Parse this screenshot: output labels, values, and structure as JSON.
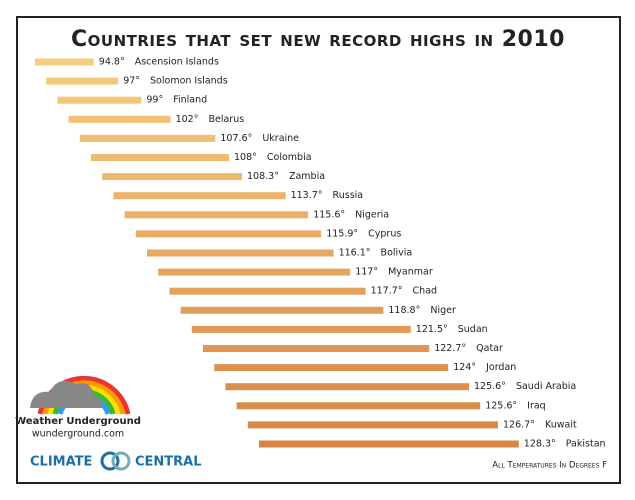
{
  "chart_data": {
    "type": "bar",
    "orientation": "horizontal",
    "title": "Countries that set new record highs in 2010",
    "categories": [
      "Ascension Islands",
      "Solomon Islands",
      "Finland",
      "Belarus",
      "Ukraine",
      "Colombia",
      "Zambia",
      "Russia",
      "Nigeria",
      "Cyprus",
      "Bolivia",
      "Myanmar",
      "Chad",
      "Niger",
      "Sudan",
      "Qatar",
      "Jordan",
      "Saudi Arabia",
      "Iraq",
      "Kuwait",
      "Pakistan"
    ],
    "values": [
      94.8,
      97,
      99,
      102,
      107.6,
      108,
      108.3,
      113.7,
      115.6,
      115.9,
      116.1,
      117,
      117.7,
      118.8,
      121.5,
      122.7,
      124,
      125.6,
      125.6,
      126.7,
      128.3
    ],
    "value_labels": [
      "94.8°",
      "97°",
      "99°",
      "102°",
      "107.6°",
      "108°",
      "108.3°",
      "113.7°",
      "115.6°",
      "115.9°",
      "116.1°",
      "117°",
      "117.7°",
      "118.8°",
      "121.5°",
      "122.7°",
      "124°",
      "125.6°",
      "125.6°",
      "126.7°",
      "128.3°"
    ],
    "colors": [
      "#f6cd80",
      "#d78444"
    ],
    "note": "All Temperatures In Degrees F"
  },
  "logos": {
    "weather_underground": "Weather Underground",
    "wunderground_url": "wunderground.com",
    "climate": "CLIMATE",
    "central": "CENTRAL"
  }
}
